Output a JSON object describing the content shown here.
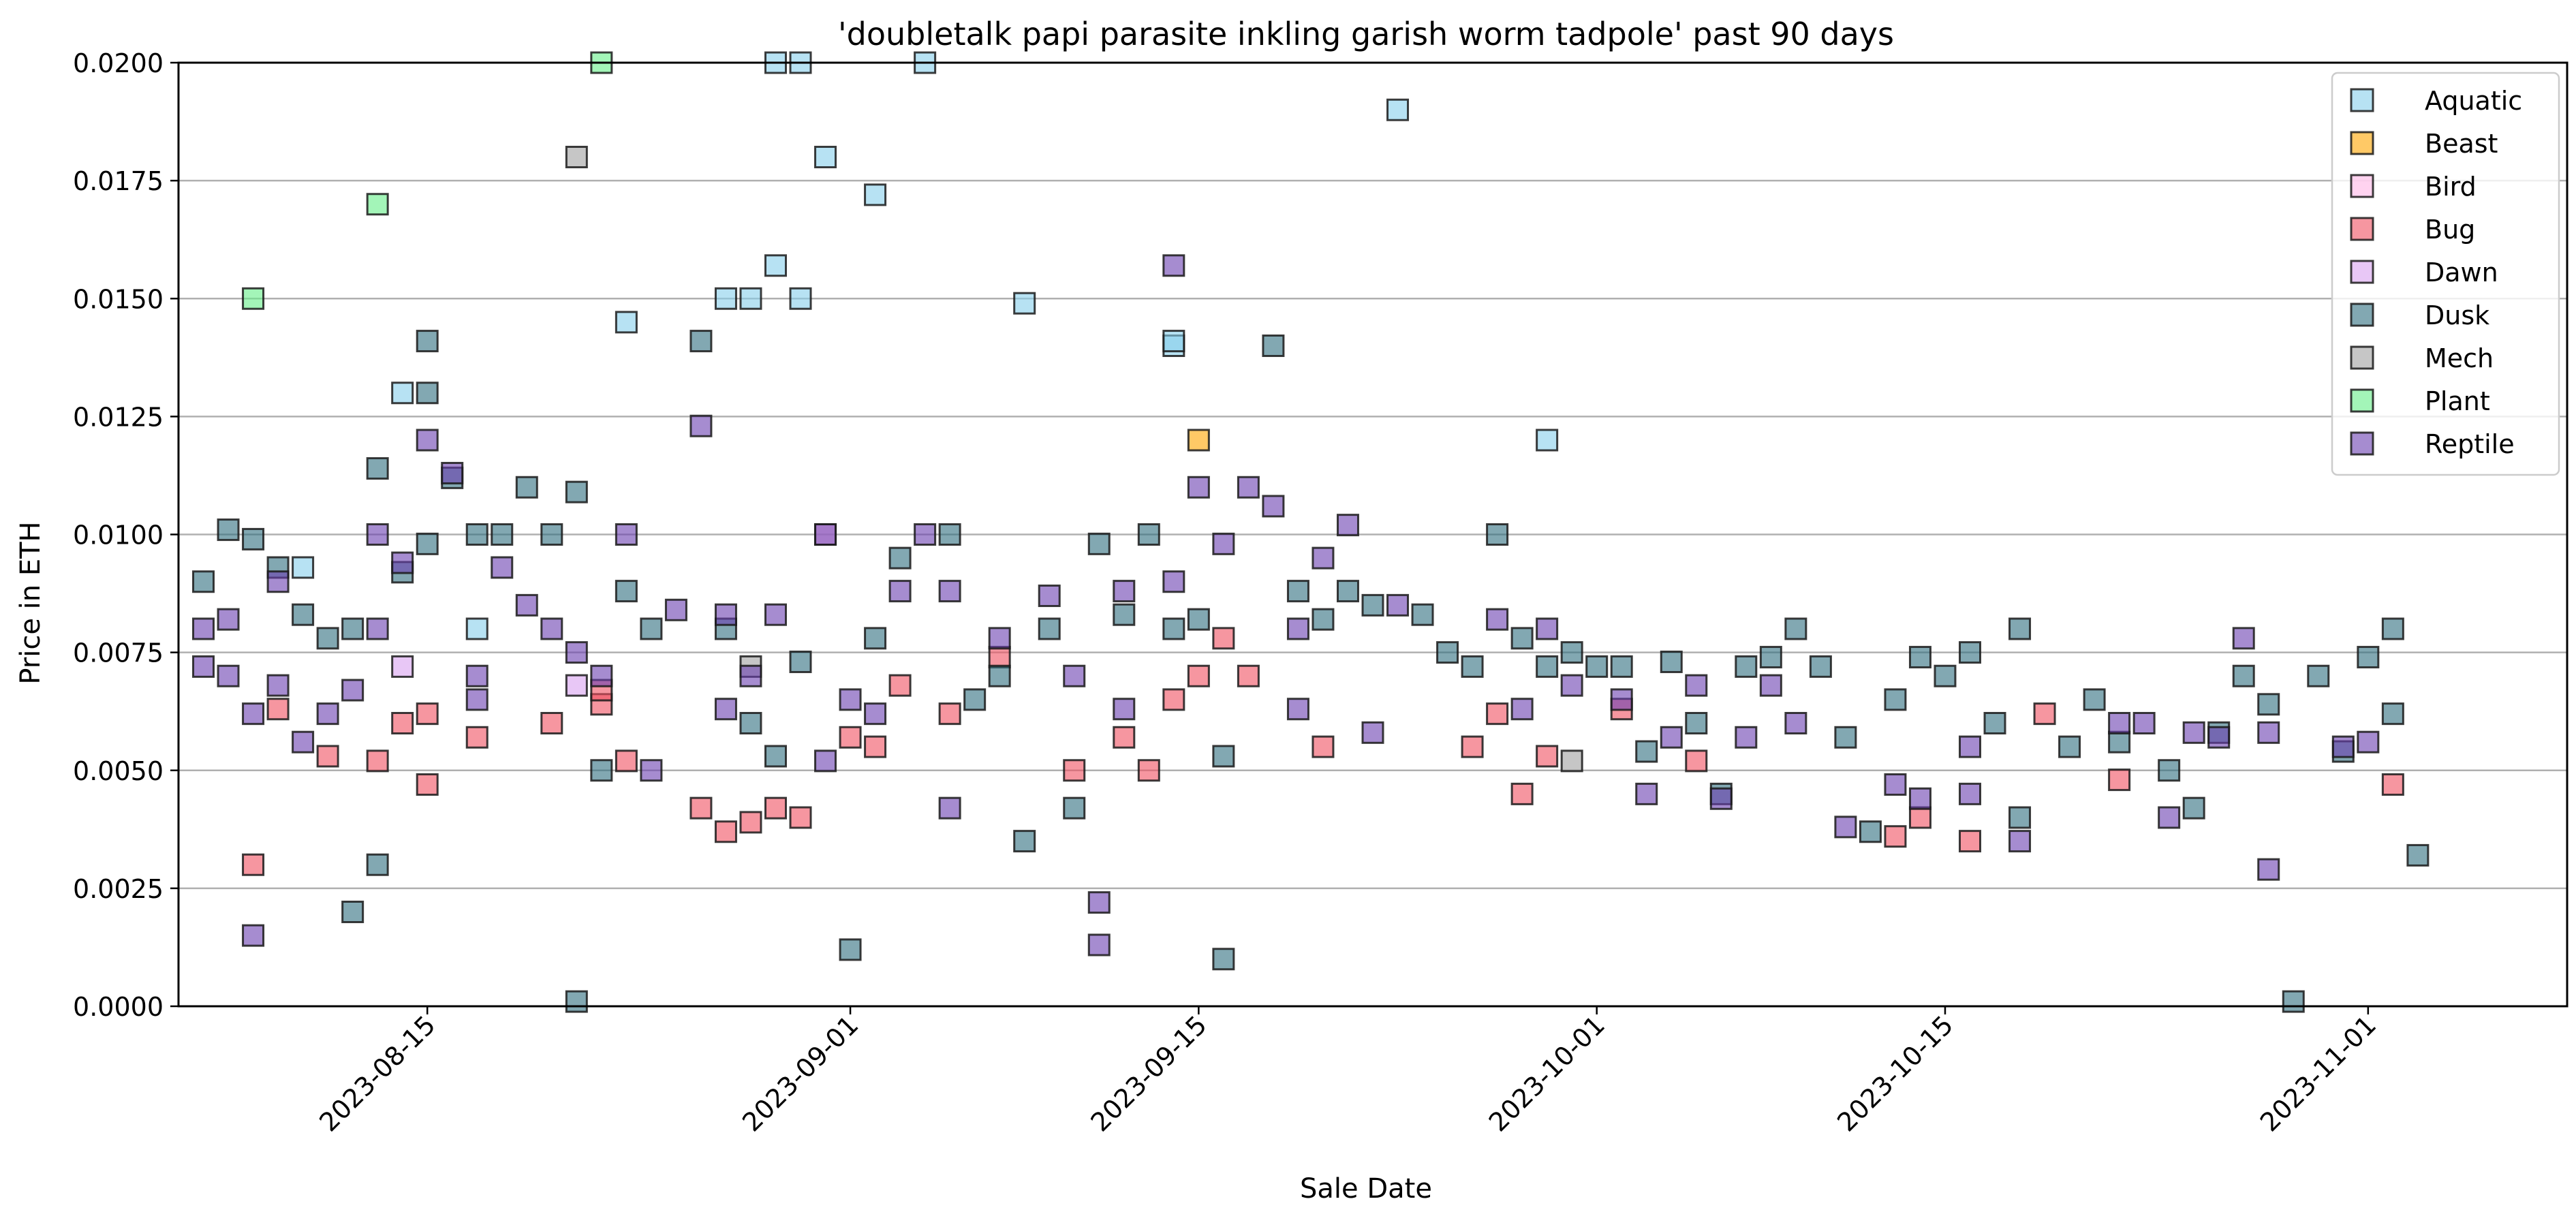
{
  "chart_data": {
    "type": "scatter",
    "title": "'doubletalk papi parasite inkling garish worm tadpole' past 90 days",
    "xlabel": "Sale Date",
    "ylabel": "Price in ETH",
    "xlim": [
      "2023-08-05",
      "2023-11-09"
    ],
    "ylim": [
      0,
      0.02
    ],
    "x_ticks": [
      "2023-08-15",
      "2023-09-01",
      "2023-09-15",
      "2023-10-01",
      "2023-10-15",
      "2023-11-01"
    ],
    "y_ticks": [
      "0.0000",
      "0.0025",
      "0.0050",
      "0.0075",
      "0.0100",
      "0.0125",
      "0.0150",
      "0.0175",
      "0.0200"
    ],
    "grid": "horizontal",
    "legend_position": "top-right",
    "marker": "square",
    "series": [
      {
        "name": "Aquatic",
        "color": "#87ceeb",
        "points": [
          [
            "2023-08-10",
            0.0093
          ],
          [
            "2023-08-14",
            0.013
          ],
          [
            "2023-08-17",
            0.008
          ],
          [
            "2023-08-23",
            0.0145
          ],
          [
            "2023-08-27",
            0.015
          ],
          [
            "2023-08-28",
            0.015
          ],
          [
            "2023-08-29",
            0.0157
          ],
          [
            "2023-08-29",
            0.02
          ],
          [
            "2023-08-30",
            0.02
          ],
          [
            "2023-08-31",
            0.018
          ],
          [
            "2023-08-30",
            0.015
          ],
          [
            "2023-09-02",
            0.0172
          ],
          [
            "2023-09-04",
            0.02
          ],
          [
            "2023-09-08",
            0.0149
          ],
          [
            "2023-09-14",
            0.014
          ],
          [
            "2023-09-14",
            0.0141
          ],
          [
            "2023-09-23",
            0.019
          ],
          [
            "2023-09-29",
            0.012
          ]
        ]
      },
      {
        "name": "Beast",
        "color": "#ffa500",
        "points": [
          [
            "2023-09-15",
            0.012
          ]
        ]
      },
      {
        "name": "Bird",
        "color": "#ffb6e6",
        "points": [
          [
            "2023-08-31",
            0.01
          ]
        ]
      },
      {
        "name": "Bug",
        "color": "#f05060",
        "points": [
          [
            "2023-08-08",
            0.003
          ],
          [
            "2023-08-09",
            0.0063
          ],
          [
            "2023-08-11",
            0.0053
          ],
          [
            "2023-08-13",
            0.0052
          ],
          [
            "2023-08-14",
            0.006
          ],
          [
            "2023-08-15",
            0.0047
          ],
          [
            "2023-08-15",
            0.0062
          ],
          [
            "2023-08-17",
            0.0057
          ],
          [
            "2023-08-20",
            0.006
          ],
          [
            "2023-08-22",
            0.0064
          ],
          [
            "2023-08-22",
            0.0067
          ],
          [
            "2023-08-23",
            0.0052
          ],
          [
            "2023-08-26",
            0.0042
          ],
          [
            "2023-08-27",
            0.0037
          ],
          [
            "2023-08-28",
            0.0039
          ],
          [
            "2023-08-29",
            0.0042
          ],
          [
            "2023-08-30",
            0.004
          ],
          [
            "2023-09-01",
            0.0057
          ],
          [
            "2023-09-02",
            0.0055
          ],
          [
            "2023-09-03",
            0.0068
          ],
          [
            "2023-09-05",
            0.0062
          ],
          [
            "2023-09-07",
            0.0074
          ],
          [
            "2023-09-10",
            0.005
          ],
          [
            "2023-09-12",
            0.0057
          ],
          [
            "2023-09-13",
            0.005
          ],
          [
            "2023-09-14",
            0.0065
          ],
          [
            "2023-09-15",
            0.007
          ],
          [
            "2023-09-16",
            0.0078
          ],
          [
            "2023-09-17",
            0.007
          ],
          [
            "2023-09-20",
            0.0055
          ],
          [
            "2023-09-26",
            0.0055
          ],
          [
            "2023-09-27",
            0.0062
          ],
          [
            "2023-09-28",
            0.0045
          ],
          [
            "2023-09-29",
            0.0053
          ],
          [
            "2023-10-02",
            0.0063
          ],
          [
            "2023-10-05",
            0.0052
          ],
          [
            "2023-10-13",
            0.0036
          ],
          [
            "2023-10-14",
            0.004
          ],
          [
            "2023-10-16",
            0.0035
          ],
          [
            "2023-10-19",
            0.0062
          ],
          [
            "2023-10-22",
            0.0048
          ],
          [
            "2023-11-02",
            0.0047
          ]
        ]
      },
      {
        "name": "Dawn",
        "color": "#d8a2f0",
        "points": [
          [
            "2023-08-14",
            0.0072
          ],
          [
            "2023-08-21",
            0.0068
          ]
        ]
      },
      {
        "name": "Dusk",
        "color": "#2e6e7e",
        "points": [
          [
            "2023-08-06",
            0.009
          ],
          [
            "2023-08-07",
            0.0101
          ],
          [
            "2023-08-08",
            0.0099
          ],
          [
            "2023-08-09",
            0.0093
          ],
          [
            "2023-08-10",
            0.0083
          ],
          [
            "2023-08-11",
            0.0078
          ],
          [
            "2023-08-12",
            0.008
          ],
          [
            "2023-08-13",
            0.0114
          ],
          [
            "2023-08-13",
            0.003
          ],
          [
            "2023-08-12",
            0.002
          ],
          [
            "2023-08-14",
            0.0092
          ],
          [
            "2023-08-15",
            0.0098
          ],
          [
            "2023-08-15",
            0.013
          ],
          [
            "2023-08-15",
            0.0141
          ],
          [
            "2023-08-16",
            0.0112
          ],
          [
            "2023-08-17",
            0.01
          ],
          [
            "2023-08-18",
            0.01
          ],
          [
            "2023-08-19",
            0.011
          ],
          [
            "2023-08-20",
            0.01
          ],
          [
            "2023-08-21",
            0.0109
          ],
          [
            "2023-08-22",
            0.005
          ],
          [
            "2023-08-21",
            0.0001
          ],
          [
            "2023-08-23",
            0.0088
          ],
          [
            "2023-08-24",
            0.008
          ],
          [
            "2023-08-26",
            0.0141
          ],
          [
            "2023-08-27",
            0.008
          ],
          [
            "2023-08-28",
            0.006
          ],
          [
            "2023-08-29",
            0.0053
          ],
          [
            "2023-08-30",
            0.0073
          ],
          [
            "2023-09-01",
            0.0012
          ],
          [
            "2023-09-02",
            0.0078
          ],
          [
            "2023-09-03",
            0.0095
          ],
          [
            "2023-09-05",
            0.01
          ],
          [
            "2023-09-06",
            0.0065
          ],
          [
            "2023-09-07",
            0.007
          ],
          [
            "2023-09-08",
            0.0035
          ],
          [
            "2023-09-09",
            0.008
          ],
          [
            "2023-09-10",
            0.0042
          ],
          [
            "2023-09-11",
            0.0098
          ],
          [
            "2023-09-12",
            0.0083
          ],
          [
            "2023-09-13",
            0.01
          ],
          [
            "2023-09-14",
            0.008
          ],
          [
            "2023-09-15",
            0.0082
          ],
          [
            "2023-09-16",
            0.0053
          ],
          [
            "2023-09-16",
            0.001
          ],
          [
            "2023-09-18",
            0.014
          ],
          [
            "2023-09-19",
            0.0088
          ],
          [
            "2023-09-20",
            0.0082
          ],
          [
            "2023-09-21",
            0.0088
          ],
          [
            "2023-09-22",
            0.0085
          ],
          [
            "2023-09-24",
            0.0083
          ],
          [
            "2023-09-25",
            0.0075
          ],
          [
            "2023-09-26",
            0.0072
          ],
          [
            "2023-09-27",
            0.01
          ],
          [
            "2023-09-28",
            0.0078
          ],
          [
            "2023-09-29",
            0.0072
          ],
          [
            "2023-09-30",
            0.0075
          ],
          [
            "2023-10-01",
            0.0072
          ],
          [
            "2023-10-02",
            0.0072
          ],
          [
            "2023-10-03",
            0.0054
          ],
          [
            "2023-10-04",
            0.0073
          ],
          [
            "2023-10-05",
            0.006
          ],
          [
            "2023-10-06",
            0.0045
          ],
          [
            "2023-10-07",
            0.0072
          ],
          [
            "2023-10-08",
            0.0074
          ],
          [
            "2023-10-09",
            0.008
          ],
          [
            "2023-10-10",
            0.0072
          ],
          [
            "2023-10-11",
            0.0057
          ],
          [
            "2023-10-12",
            0.0037
          ],
          [
            "2023-10-13",
            0.0065
          ],
          [
            "2023-10-14",
            0.0074
          ],
          [
            "2023-10-15",
            0.007
          ],
          [
            "2023-10-16",
            0.0075
          ],
          [
            "2023-10-17",
            0.006
          ],
          [
            "2023-10-18",
            0.008
          ],
          [
            "2023-10-18",
            0.004
          ],
          [
            "2023-10-20",
            0.0055
          ],
          [
            "2023-10-21",
            0.0065
          ],
          [
            "2023-10-22",
            0.0056
          ],
          [
            "2023-10-24",
            0.005
          ],
          [
            "2023-10-25",
            0.0042
          ],
          [
            "2023-10-26",
            0.0058
          ],
          [
            "2023-10-27",
            0.007
          ],
          [
            "2023-10-28",
            0.0064
          ],
          [
            "2023-10-29",
            0.0001
          ],
          [
            "2023-10-30",
            0.007
          ],
          [
            "2023-10-31",
            0.0054
          ],
          [
            "2023-11-01",
            0.0074
          ],
          [
            "2023-11-02",
            0.008
          ],
          [
            "2023-11-02",
            0.0062
          ],
          [
            "2023-11-03",
            0.0032
          ]
        ]
      },
      {
        "name": "Mech",
        "color": "#a0a0a0",
        "points": [
          [
            "2023-08-21",
            0.018
          ],
          [
            "2023-08-28",
            0.0072
          ],
          [
            "2023-09-30",
            0.0052
          ]
        ]
      },
      {
        "name": "Plant",
        "color": "#66ee88",
        "points": [
          [
            "2023-08-08",
            0.015
          ],
          [
            "2023-08-13",
            0.017
          ],
          [
            "2023-08-22",
            0.02
          ]
        ]
      },
      {
        "name": "Reptile",
        "color": "#6a3fb0",
        "points": [
          [
            "2023-08-06",
            0.008
          ],
          [
            "2023-08-06",
            0.0072
          ],
          [
            "2023-08-07",
            0.007
          ],
          [
            "2023-08-07",
            0.0082
          ],
          [
            "2023-08-08",
            0.0015
          ],
          [
            "2023-08-08",
            0.0062
          ],
          [
            "2023-08-09",
            0.0068
          ],
          [
            "2023-08-09",
            0.009
          ],
          [
            "2023-08-10",
            0.0056
          ],
          [
            "2023-08-11",
            0.0062
          ],
          [
            "2023-08-12",
            0.0067
          ],
          [
            "2023-08-13",
            0.01
          ],
          [
            "2023-08-13",
            0.008
          ],
          [
            "2023-08-14",
            0.0094
          ],
          [
            "2023-08-15",
            0.012
          ],
          [
            "2023-08-16",
            0.0113
          ],
          [
            "2023-08-17",
            0.0065
          ],
          [
            "2023-08-17",
            0.007
          ],
          [
            "2023-08-18",
            0.0093
          ],
          [
            "2023-08-19",
            0.0085
          ],
          [
            "2023-08-20",
            0.008
          ],
          [
            "2023-08-21",
            0.0075
          ],
          [
            "2023-08-22",
            0.007
          ],
          [
            "2023-08-23",
            0.01
          ],
          [
            "2023-08-24",
            0.005
          ],
          [
            "2023-08-25",
            0.0084
          ],
          [
            "2023-08-26",
            0.0123
          ],
          [
            "2023-08-27",
            0.0063
          ],
          [
            "2023-08-27",
            0.0083
          ],
          [
            "2023-08-28",
            0.007
          ],
          [
            "2023-08-29",
            0.0083
          ],
          [
            "2023-08-31",
            0.0052
          ],
          [
            "2023-08-31",
            0.01
          ],
          [
            "2023-09-01",
            0.0065
          ],
          [
            "2023-09-02",
            0.0062
          ],
          [
            "2023-09-03",
            0.0088
          ],
          [
            "2023-09-04",
            0.01
          ],
          [
            "2023-09-05",
            0.0042
          ],
          [
            "2023-09-05",
            0.0088
          ],
          [
            "2023-09-07",
            0.0078
          ],
          [
            "2023-09-09",
            0.0087
          ],
          [
            "2023-09-10",
            0.007
          ],
          [
            "2023-09-11",
            0.0022
          ],
          [
            "2023-09-11",
            0.0013
          ],
          [
            "2023-09-12",
            0.0088
          ],
          [
            "2023-09-12",
            0.0063
          ],
          [
            "2023-09-14",
            0.0157
          ],
          [
            "2023-09-14",
            0.009
          ],
          [
            "2023-09-15",
            0.011
          ],
          [
            "2023-09-16",
            0.0098
          ],
          [
            "2023-09-17",
            0.011
          ],
          [
            "2023-09-18",
            0.0106
          ],
          [
            "2023-09-19",
            0.0063
          ],
          [
            "2023-09-19",
            0.008
          ],
          [
            "2023-09-20",
            0.0095
          ],
          [
            "2023-09-21",
            0.0102
          ],
          [
            "2023-09-22",
            0.0058
          ],
          [
            "2023-09-23",
            0.0085
          ],
          [
            "2023-09-27",
            0.0082
          ],
          [
            "2023-09-28",
            0.0063
          ],
          [
            "2023-09-29",
            0.008
          ],
          [
            "2023-09-30",
            0.0068
          ],
          [
            "2023-10-02",
            0.0065
          ],
          [
            "2023-10-03",
            0.0045
          ],
          [
            "2023-10-04",
            0.0057
          ],
          [
            "2023-10-05",
            0.0068
          ],
          [
            "2023-10-06",
            0.0044
          ],
          [
            "2023-10-07",
            0.0057
          ],
          [
            "2023-10-08",
            0.0068
          ],
          [
            "2023-10-09",
            0.006
          ],
          [
            "2023-10-11",
            0.0038
          ],
          [
            "2023-10-13",
            0.0047
          ],
          [
            "2023-10-14",
            0.0044
          ],
          [
            "2023-10-16",
            0.0055
          ],
          [
            "2023-10-16",
            0.0045
          ],
          [
            "2023-10-18",
            0.0035
          ],
          [
            "2023-10-22",
            0.006
          ],
          [
            "2023-10-23",
            0.006
          ],
          [
            "2023-10-24",
            0.004
          ],
          [
            "2023-10-25",
            0.0058
          ],
          [
            "2023-10-26",
            0.0057
          ],
          [
            "2023-10-27",
            0.0078
          ],
          [
            "2023-10-28",
            0.0029
          ],
          [
            "2023-10-28",
            0.0058
          ],
          [
            "2023-10-31",
            0.0055
          ],
          [
            "2023-11-01",
            0.0056
          ]
        ]
      }
    ]
  }
}
